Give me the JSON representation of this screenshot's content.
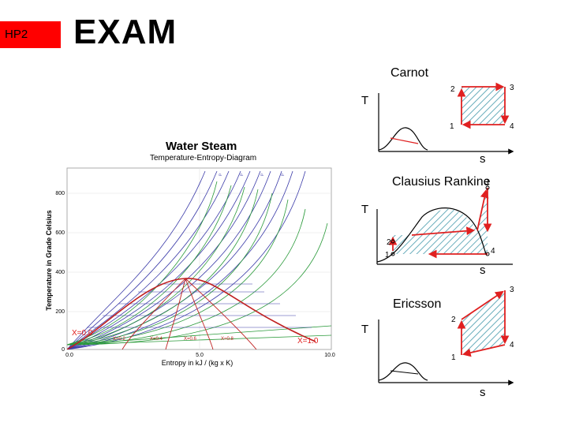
{
  "slide": {
    "badge": "HP2",
    "title": "EXAM"
  },
  "steam_chart": {
    "title": "Water Steam",
    "subtitle": "Temperature-Entropy-Diagram",
    "ylabel": "Temperature in Grade Celsius",
    "xlabel": "Entropy in kJ / (kg x K)",
    "y_ticks": [
      "800",
      "600",
      "400",
      "200",
      "0"
    ],
    "x_ticks": [
      "0.0",
      "5.0",
      "10.0"
    ],
    "quality_left": "X=0.0",
    "quality_right": "X=1.0",
    "quality_lines": [
      "X=0.2",
      "X=0.4",
      "X=0.6",
      "X=0.8"
    ]
  },
  "carnot": {
    "title": "Carnot",
    "t_axis": "T",
    "s_axis": "s",
    "points": [
      "1",
      "2",
      "3",
      "4"
    ]
  },
  "rankine": {
    "title": "Clausius Rankine",
    "t_axis": "T",
    "s_axis": "s",
    "points": [
      "1",
      "2",
      "3",
      "4"
    ]
  },
  "ericsson": {
    "title": "Ericsson",
    "t_axis": "T",
    "s_axis": "s",
    "points": [
      "1",
      "2",
      "3",
      "4"
    ]
  },
  "colors": {
    "badge": "#ff0000",
    "arrow": "#e02020",
    "hatch": "#5aa5b5",
    "dome": "#000000"
  }
}
